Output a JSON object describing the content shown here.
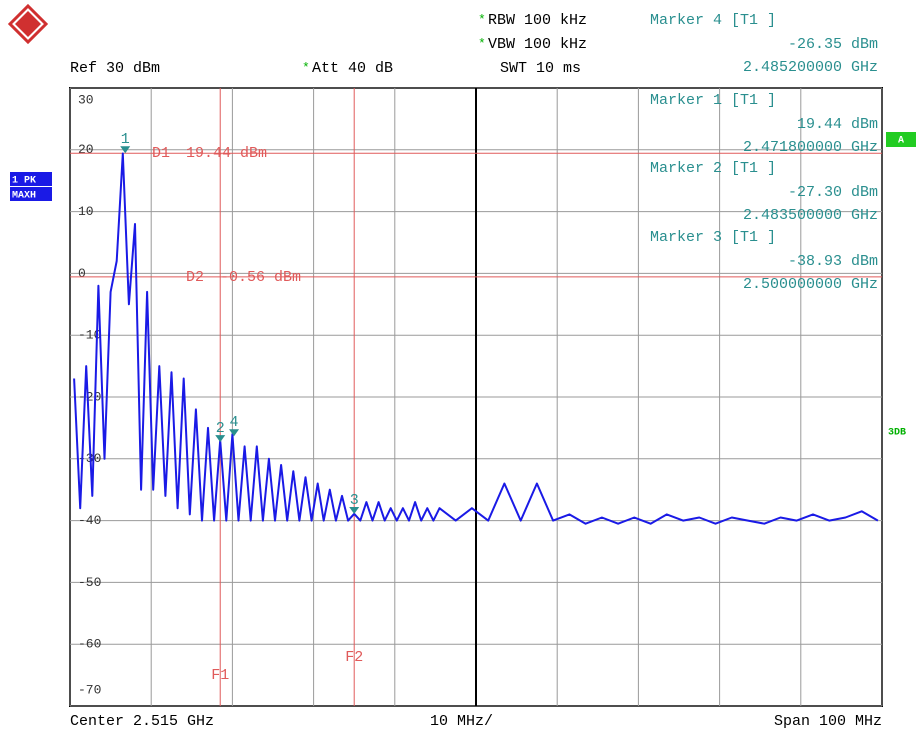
{
  "chart_data": {
    "type": "line",
    "header": {
      "star": "*",
      "rbw": "RBW 100 kHz",
      "vbw": "VBW 100 kHz",
      "swt": "SWT 10 ms",
      "ref": "Ref 30 dBm",
      "att": "Att 40 dB"
    },
    "trace_label": [
      "1 PK",
      "MAXH"
    ],
    "side_labels": [
      "A",
      "3DB"
    ],
    "footer": {
      "center": "Center 2.515 GHz",
      "div": "10 MHz/",
      "span": "Span 100 MHz"
    },
    "xlim": [
      2.465,
      2.565
    ],
    "xticks": [
      2.465,
      2.475,
      2.485,
      2.495,
      2.505,
      2.515,
      2.525,
      2.535,
      2.545,
      2.555,
      2.565
    ],
    "ylim": [
      -70,
      30
    ],
    "yticks": [
      30,
      20,
      10,
      0,
      -10,
      -20,
      -30,
      -40,
      -50,
      -60,
      -70
    ],
    "grid": true,
    "series": [
      {
        "color": "#1a1ae6",
        "x": [
          2.4655,
          2.46625,
          2.467,
          2.46775,
          2.4685,
          2.46925,
          2.47,
          2.47075,
          2.4715,
          2.47225,
          2.473,
          2.47375,
          2.4745,
          2.47525,
          2.476,
          2.47675,
          2.4775,
          2.47825,
          2.479,
          2.47975,
          2.4805,
          2.48125,
          2.482,
          2.48275,
          2.4835,
          2.48425,
          2.485,
          2.48575,
          2.4865,
          2.48725,
          2.488,
          2.48875,
          2.4895,
          2.49025,
          2.491,
          2.49175,
          2.4925,
          2.49325,
          2.494,
          2.49475,
          2.4955,
          2.49625,
          2.497,
          2.49775,
          2.4985,
          2.49925,
          2.5,
          2.50075,
          2.5015,
          2.50225,
          2.503,
          2.50375,
          2.5045,
          2.50525,
          2.506,
          2.50675,
          2.5075,
          2.50825,
          2.509,
          2.50975,
          2.5105,
          2.5125,
          2.5145,
          2.5165,
          2.5185,
          2.5205,
          2.5225,
          2.5245,
          2.5265,
          2.5285,
          2.5305,
          2.5325,
          2.5345,
          2.5365,
          2.5385,
          2.5405,
          2.5425,
          2.5445,
          2.5465,
          2.5485,
          2.5505,
          2.5525,
          2.5545,
          2.5565,
          2.5585,
          2.5605,
          2.5625,
          2.5645
        ],
        "values": [
          -17,
          -38,
          -15,
          -36,
          -2,
          -30,
          -3,
          2,
          19.4,
          -5,
          8,
          -35,
          -3,
          -35,
          -15,
          -36,
          -16,
          -38,
          -17,
          -39,
          -22,
          -40,
          -25,
          -40,
          -27,
          -40,
          -26,
          -40,
          -28,
          -40,
          -28,
          -40,
          -30,
          -40,
          -31,
          -40,
          -32,
          -40,
          -33,
          -40,
          -34,
          -40,
          -35,
          -40,
          -36,
          -40,
          -38.9,
          -40,
          -37,
          -40,
          -37,
          -40,
          -38,
          -40,
          -38,
          -40,
          -37,
          -40,
          -38,
          -40,
          -38,
          -40,
          -38,
          -40,
          -34,
          -40,
          -34,
          -40,
          -39,
          -40.5,
          -39.5,
          -40.5,
          -39.5,
          -40.5,
          -39,
          -40,
          -39.5,
          -40.5,
          -39.5,
          -40,
          -40.5,
          -39.5,
          -40,
          -39,
          -40,
          -39.5,
          -38.5,
          -40
        ]
      }
    ],
    "markers": [
      {
        "heading": "Marker 1 [T1 ]",
        "label": "1",
        "x": 2.4718,
        "value": 19.44,
        "value_label": "19.44 dBm",
        "x_label": "2.471800000 GHz"
      },
      {
        "heading": "Marker 2 [T1 ]",
        "label": "2",
        "x": 2.4835,
        "value": -27.3,
        "value_label": "-27.30 dBm",
        "x_label": "2.483500000 GHz"
      },
      {
        "heading": "Marker 3 [T1 ]",
        "label": "3",
        "x": 2.5,
        "value": -38.93,
        "value_label": "-38.93 dBm",
        "x_label": "2.500000000 GHz"
      },
      {
        "heading": "Marker 4 [T1 ]",
        "label": "4",
        "x": 2.4852,
        "value": -26.35,
        "value_label": "-26.35 dBm",
        "x_label": "2.485200000 GHz"
      }
    ],
    "marker_color": "#2a8f8f",
    "display_lines": [
      {
        "label": "D1",
        "value": 19.44,
        "value_label": "19.44 dBm"
      },
      {
        "label": "D2",
        "value": -0.56,
        "value_label": "-0.56 dBm"
      }
    ],
    "freq_lines": [
      {
        "label": "F1",
        "x": 2.4835
      },
      {
        "label": "F2",
        "x": 2.5
      }
    ],
    "line_color": "#e05a5a"
  }
}
